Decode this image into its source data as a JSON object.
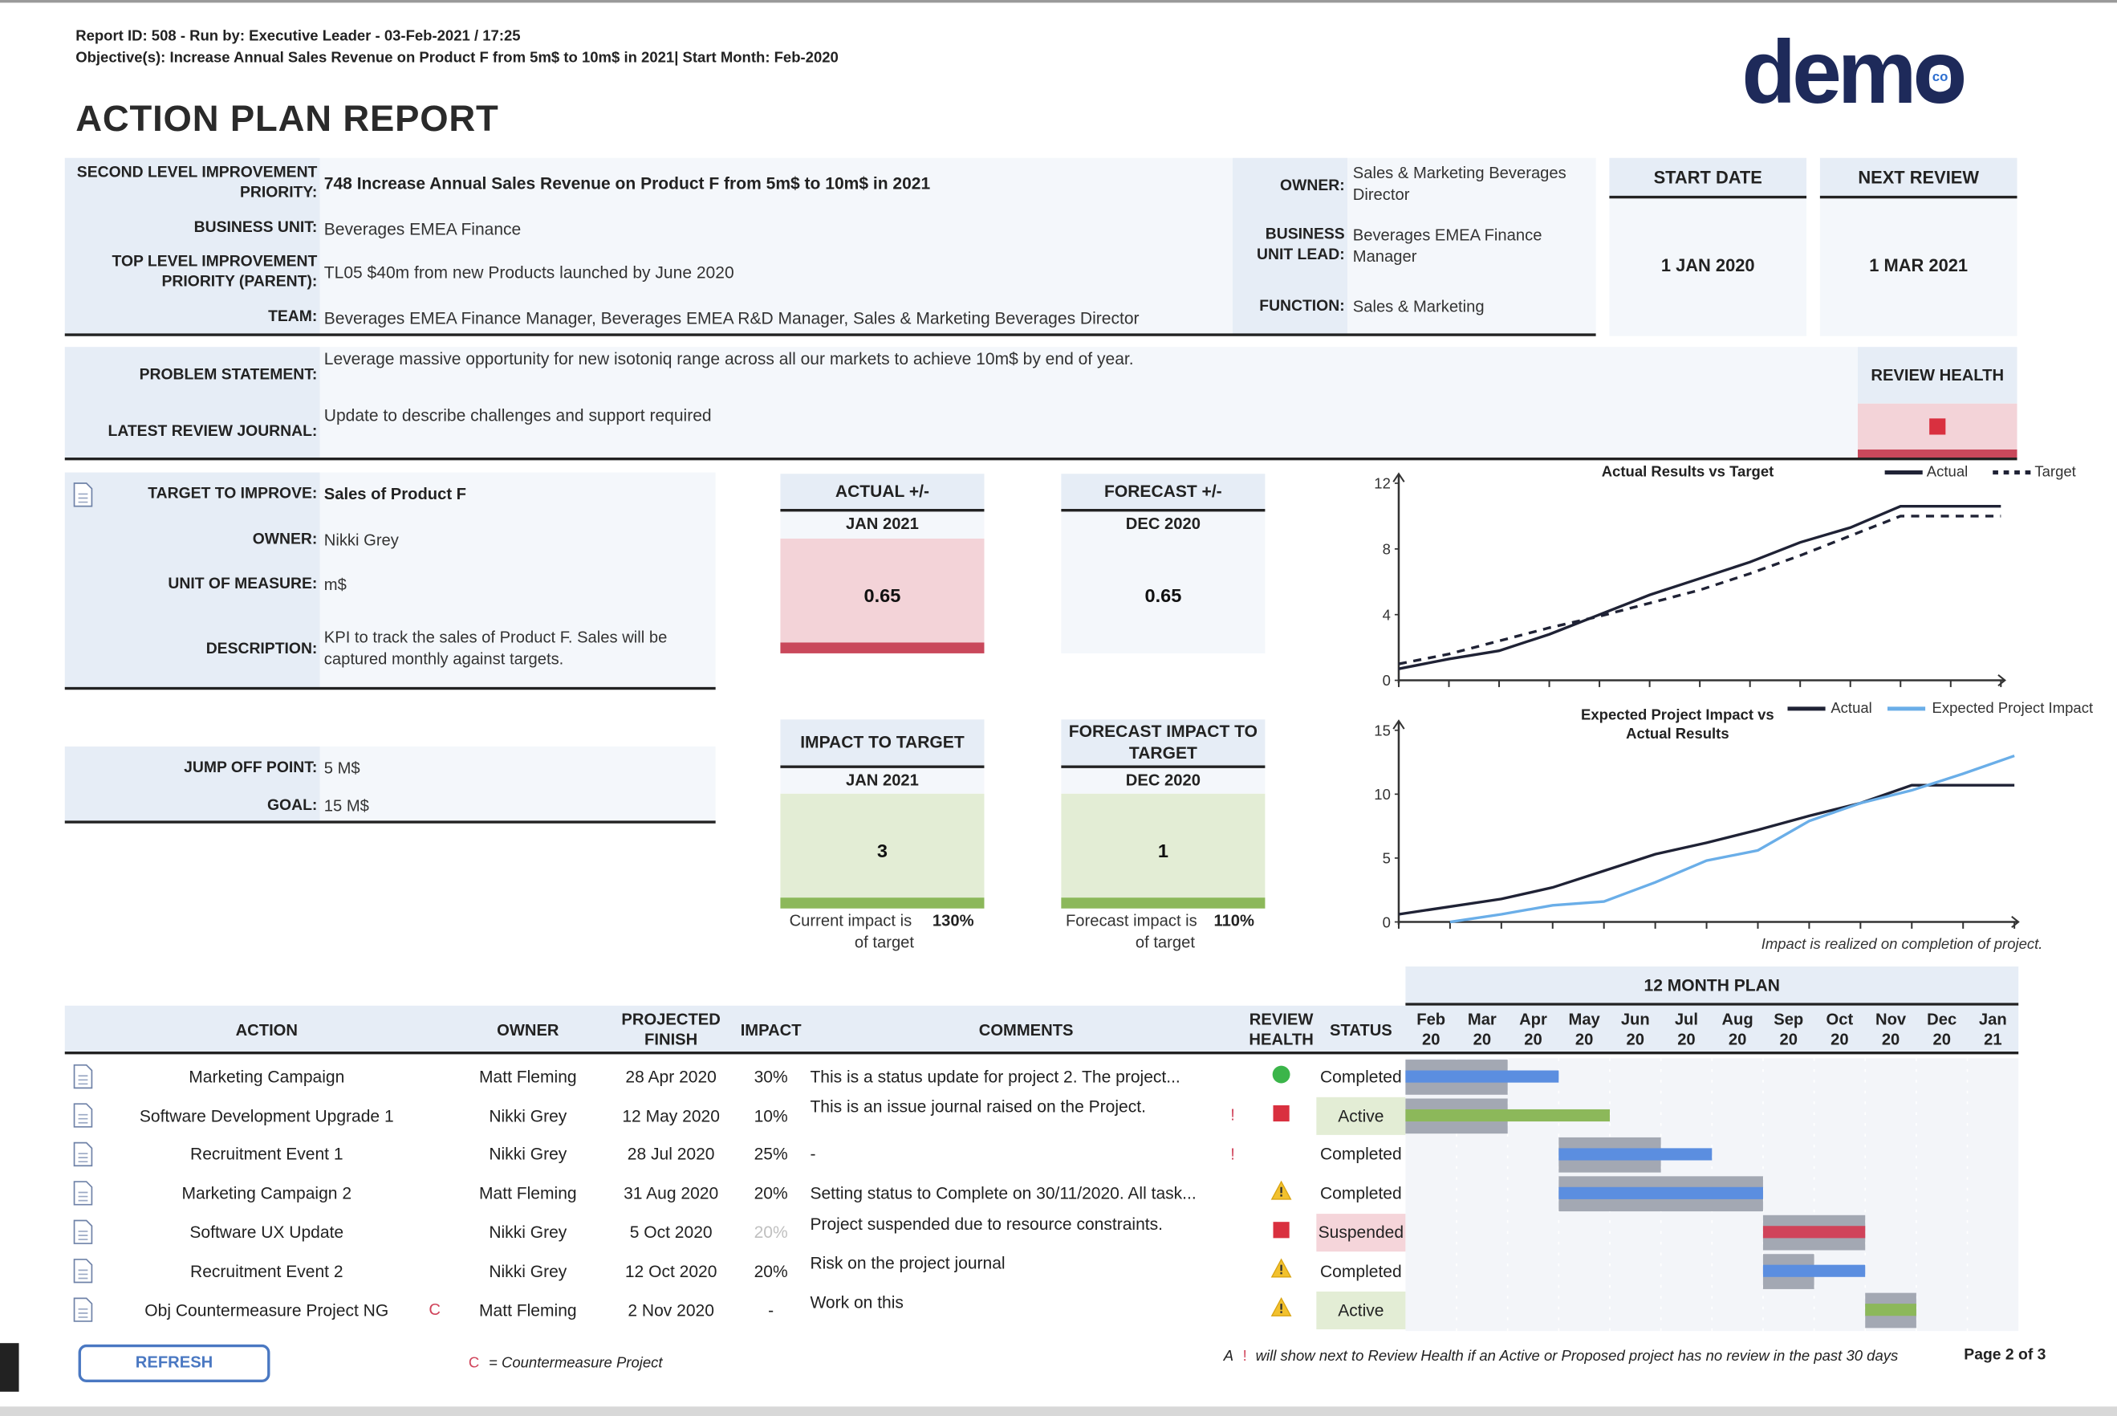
{
  "header": {
    "report_line": "Report ID: 508 - Run by: Executive Leader - 03-Feb-2021 / 17:25",
    "objective_line": "Objective(s): Increase Annual Sales Revenue on Product F from 5m$ to 10m$ in 2021| Start Month: Feb-2020",
    "title": "ACTION PLAN REPORT",
    "logo": "demo",
    "logo_badge": "co"
  },
  "priority": {
    "fields": [
      {
        "label": "SECOND LEVEL IMPROVEMENT PRIORITY:",
        "value": "748 Increase Annual Sales Revenue on Product F from 5m$ to 10m$ in 2021"
      },
      {
        "label": "BUSINESS UNIT:",
        "value": "Beverages  EMEA Finance"
      },
      {
        "label": "TOP LEVEL IMPROVEMENT PRIORITY (PARENT):",
        "value": "TL05 $40m from new Products launched by June 2020"
      },
      {
        "label": "TEAM:",
        "value": "Beverages EMEA Finance Manager, Beverages EMEA R&D Manager, Sales & Marketing Beverages Director"
      }
    ],
    "owner_fields": [
      {
        "label": "OWNER:",
        "value": "Sales & Marketing Beverages Director"
      },
      {
        "label": "BUSINESS UNIT LEAD:",
        "value": "Beverages EMEA Finance Manager"
      },
      {
        "label": "FUNCTION:",
        "value": "Sales & Marketing"
      }
    ],
    "start_date": {
      "label": "START DATE",
      "value": "1 JAN 2020"
    },
    "next_review": {
      "label": "NEXT REVIEW",
      "value": "1 MAR 2021"
    }
  },
  "problem": {
    "fields": [
      {
        "label": "PROBLEM STATEMENT:",
        "value": "Leverage massive opportunity for new isotoniq range across all our markets to achieve 10m$ by end of year."
      },
      {
        "label": "LATEST REVIEW JOURNAL:",
        "value": "Update to describe challenges and support required"
      }
    ],
    "review_health": "REVIEW HEALTH"
  },
  "kpi": {
    "fields": [
      {
        "label": "TARGET TO IMPROVE:",
        "value": "Sales of Product F"
      },
      {
        "label": "OWNER:",
        "value": "Nikki Grey"
      },
      {
        "label": "UNIT OF MEASURE:",
        "value": "m$"
      },
      {
        "label": "DESCRIPTION:",
        "value": "KPI to track the sales of Product F. Sales will be captured monthly against targets."
      }
    ],
    "goal_fields": [
      {
        "label": "JUMP OFF POINT:",
        "value": "5 M$"
      },
      {
        "label": "GOAL:",
        "value": "15 M$"
      }
    ]
  },
  "tiles": [
    {
      "title": "ACTUAL +/-",
      "period": "JAN 2021",
      "value": 0.65,
      "fill": "#f3d3d8",
      "band": "#c9485b"
    },
    {
      "title": "FORECAST +/-",
      "period": "DEC 2020",
      "value": 0.65,
      "fill": "#f4f7fb",
      "band": "#f4f7fb"
    },
    {
      "title": "IMPACT TO TARGET",
      "period": "JAN 2021",
      "value": 3,
      "fill": "#e3edd5",
      "band": "#8cb85a",
      "note": "Current impact is",
      "note_value": "130%",
      "note_suffix": "of target"
    },
    {
      "title": "FORECAST IMPACT TO TARGET",
      "period": "DEC 2020",
      "value": 1,
      "fill": "#e3edd5",
      "band": "#8cb85a",
      "note": "Forecast impact is",
      "note_value": "110%",
      "note_suffix": "of target"
    }
  ],
  "chart_data": [
    {
      "type": "line",
      "title": "Actual Results vs Target",
      "categories": [
        null,
        null,
        null,
        null,
        null,
        null,
        null,
        null,
        null,
        null,
        null,
        null,
        null
      ],
      "series": [
        {
          "name": "Actual",
          "color": "#1f2235",
          "values": [
            0.7,
            1.3,
            1.8,
            2.8,
            4.0,
            5.2,
            6.2,
            7.2,
            8.4,
            9.3,
            10.6,
            10.6,
            10.6
          ]
        },
        {
          "name": "Target",
          "color": "#1f2235",
          "style": "dashed",
          "values": [
            1.0,
            1.6,
            2.4,
            3.2,
            3.9,
            4.7,
            5.5,
            6.5,
            7.6,
            8.8,
            10.0,
            10.0,
            10.0
          ]
        }
      ],
      "ylim": [
        0,
        12
      ],
      "yticks": [
        0,
        4,
        8,
        12
      ]
    },
    {
      "type": "line",
      "title": "Expected Project Impact vs Actual Results",
      "annotation": "Impact is realized on completion of project.",
      "categories": [
        null,
        null,
        null,
        null,
        null,
        null,
        null,
        null,
        null,
        null,
        null,
        null,
        null
      ],
      "series": [
        {
          "name": "Actual",
          "color": "#1f2235",
          "values": [
            0.6,
            1.2,
            1.8,
            2.7,
            4.0,
            5.3,
            6.2,
            7.2,
            8.3,
            9.3,
            10.7,
            10.7,
            10.7
          ]
        },
        {
          "name": "Expected Project Impact",
          "color": "#6aaee8",
          "values": [
            null,
            0,
            0.6,
            1.3,
            1.6,
            3.1,
            4.8,
            5.6,
            7.9,
            9.3,
            10.3,
            11.6,
            13.0
          ]
        }
      ],
      "ylim": [
        0,
        15
      ],
      "yticks": [
        0,
        5,
        10,
        15
      ]
    }
  ],
  "actions": {
    "plan_title": "12 MONTH PLAN",
    "columns": [
      "ACTION",
      "OWNER",
      "PROJECTED FINISH",
      "IMPACT",
      "COMMENTS",
      "REVIEW HEALTH",
      "STATUS"
    ],
    "months": [
      "Feb 20",
      "Mar 20",
      "Apr 20",
      "May 20",
      "Jun 20",
      "Jul 20",
      "Aug 20",
      "Sep 20",
      "Oct 20",
      "Nov 20",
      "Dec 20",
      "Jan 21"
    ],
    "rows": [
      {
        "action": "Marketing Campaign",
        "owner": "Matt Fleming",
        "finish": "28 Apr 2020",
        "impact": "30%",
        "comment": "This is a status update for project 2. The project...",
        "health": "green",
        "status": "Completed"
      },
      {
        "action": "Software Development Upgrade 1",
        "owner": "Nikki Grey",
        "finish": "12 May 2020",
        "impact": "10%",
        "comment": "This is an issue journal raised on the Project.",
        "alert": "!",
        "health": "red",
        "status": "Active",
        "status_fill": "#e3edd5"
      },
      {
        "action": "Recruitment Event 1",
        "owner": "Nikki Grey",
        "finish": "28 Jul 2020",
        "impact": "25%",
        "comment": "-",
        "alert": "!",
        "status": "Completed"
      },
      {
        "action": "Marketing Campaign 2",
        "owner": "Matt Fleming",
        "finish": "31 Aug 2020",
        "impact": "20%",
        "comment": "Setting status to Complete on 30/11/2020. All task...",
        "health": "warning",
        "status": "Completed"
      },
      {
        "action": "Software UX Update",
        "owner": "Nikki Grey",
        "finish": "5 Oct 2020",
        "impact": "20%",
        "impact_color": "#c0c0c0",
        "comment": "Project suspended due to resource constraints.",
        "health": "red",
        "status": "Suspended",
        "status_fill": "#f5d5da"
      },
      {
        "action": "Recruitment Event 2",
        "owner": "Nikki Grey",
        "finish": "12 Oct 2020",
        "impact": "20%",
        "comment": "Risk on the project journal",
        "health": "warning",
        "status": "Completed"
      },
      {
        "action": "Obj Countermeasure Project NG",
        "flag": "C",
        "owner": "Matt Fleming",
        "finish": "2 Nov 2020",
        "impact": "-",
        "comment": "Work on this",
        "health": "warning",
        "status": "Active",
        "status_fill": "#e3edd5"
      }
    ]
  },
  "footer": {
    "refresh": "REFRESH",
    "flag": "C",
    "flag_note": "= Countermeasure Project",
    "alert_prefix": "A",
    "alert_mark": "!",
    "alert_note": "will show next to Review Health if an Active or Proposed project has no review in the past 30 days",
    "page": "Page 2 of 3"
  }
}
